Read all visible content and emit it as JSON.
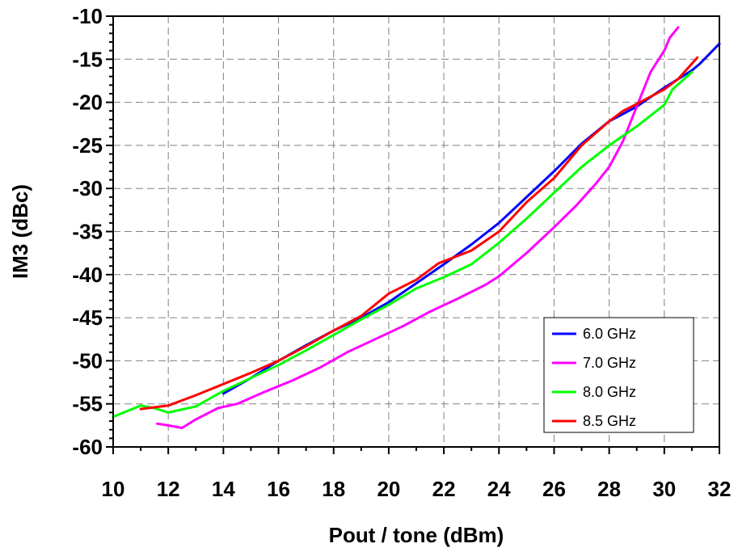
{
  "chart_data": {
    "type": "line",
    "title": "",
    "xlabel": "Pout / tone (dBm)",
    "ylabel": "IM3 (dBc)",
    "xlim": [
      10,
      32
    ],
    "ylim": [
      -60,
      -10
    ],
    "xticks": [
      10,
      12,
      14,
      16,
      18,
      20,
      22,
      24,
      26,
      28,
      30,
      32
    ],
    "yticks": [
      -10,
      -15,
      -20,
      -25,
      -30,
      -35,
      -40,
      -45,
      -50,
      -55,
      -60
    ],
    "xtick_labels": [
      "10",
      "12",
      "14",
      "16",
      "18",
      "20",
      "22",
      "24",
      "26",
      "28",
      "30",
      "32"
    ],
    "ytick_labels": [
      "-10",
      "-15",
      "-20",
      "-25",
      "-30",
      "-35",
      "-40",
      "-45",
      "-50",
      "-55",
      "-60"
    ],
    "grid": true,
    "legend_position": "bottom-right",
    "series": [
      {
        "name": "6.0 GHz",
        "color": "#0000ff",
        "x": [
          14.0,
          15.0,
          16.0,
          17.0,
          18.0,
          19.0,
          20.0,
          21.0,
          22.0,
          23.0,
          24.0,
          25.0,
          26.0,
          27.0,
          28.0,
          29.0,
          30.0,
          31.0,
          31.3,
          32.0
        ],
        "y": [
          -53.8,
          -52.0,
          -50.0,
          -48.2,
          -46.5,
          -45.0,
          -43.2,
          -41.0,
          -38.8,
          -36.5,
          -34.0,
          -31.0,
          -28.0,
          -24.8,
          -22.2,
          -20.5,
          -18.3,
          -16.3,
          -15.5,
          -13.2
        ]
      },
      {
        "name": "7.0 GHz",
        "color": "#ff00ff",
        "x": [
          11.6,
          12.0,
          12.5,
          13.0,
          13.8,
          14.5,
          15.5,
          16.5,
          17.5,
          18.5,
          19.5,
          20.5,
          21.5,
          22.5,
          23.5,
          24.0,
          25.0,
          26.0,
          26.8,
          27.5,
          28.0,
          28.5,
          29.0,
          29.5,
          30.0,
          30.2,
          30.5
        ],
        "y": [
          -57.3,
          -57.5,
          -57.8,
          -56.8,
          -55.5,
          -55.0,
          -53.6,
          -52.3,
          -50.8,
          -49.0,
          -47.5,
          -46.0,
          -44.3,
          -42.8,
          -41.2,
          -40.2,
          -37.5,
          -34.5,
          -32.0,
          -29.5,
          -27.5,
          -24.5,
          -20.5,
          -16.5,
          -14.0,
          -12.5,
          -11.3
        ]
      },
      {
        "name": "8.0 GHz",
        "color": "#00ff00",
        "x": [
          10.0,
          11.0,
          11.5,
          12.0,
          13.0,
          14.0,
          15.0,
          16.0,
          17.0,
          18.0,
          19.0,
          20.0,
          21.0,
          22.0,
          23.0,
          24.0,
          25.0,
          26.0,
          27.0,
          28.0,
          29.0,
          30.0,
          30.3,
          31.0
        ],
        "y": [
          -56.5,
          -55.2,
          -55.5,
          -56.0,
          -55.3,
          -53.5,
          -52.0,
          -50.5,
          -48.8,
          -47.0,
          -45.2,
          -43.5,
          -41.6,
          -40.3,
          -38.8,
          -36.3,
          -33.5,
          -30.5,
          -27.5,
          -25.0,
          -22.8,
          -20.3,
          -18.5,
          -16.5
        ]
      },
      {
        "name": "8.5 GHz",
        "color": "#ff0000",
        "x": [
          11.0,
          12.0,
          13.0,
          14.0,
          15.0,
          16.0,
          17.0,
          18.0,
          19.0,
          20.0,
          21.0,
          21.8,
          23.0,
          24.0,
          25.0,
          26.0,
          27.0,
          28.0,
          28.5,
          29.0,
          30.0,
          30.5,
          31.2
        ],
        "y": [
          -55.6,
          -55.2,
          -54.0,
          -52.7,
          -51.4,
          -50.0,
          -48.3,
          -46.5,
          -44.8,
          -42.2,
          -40.6,
          -38.7,
          -37.2,
          -35.0,
          -31.6,
          -28.8,
          -25.0,
          -22.2,
          -21.0,
          -20.2,
          -18.5,
          -17.3,
          -14.8
        ]
      }
    ]
  }
}
